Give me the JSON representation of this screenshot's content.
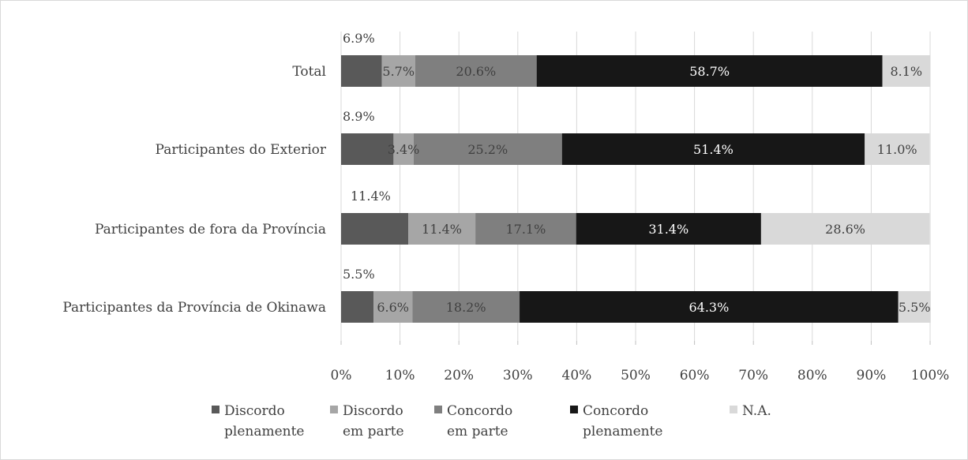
{
  "chart_data": {
    "type": "bar",
    "orientation": "horizontal",
    "stacked": true,
    "percent_stacked": true,
    "categories": [
      "Total",
      "Participantes do Exterior",
      "Participantes de fora da Província",
      "Participantes da Província de Okinawa"
    ],
    "series": [
      {
        "name": "Discordo plenamente",
        "legend_lines": [
          "Discordo",
          "plenamente"
        ],
        "color": "#595959",
        "values": [
          6.9,
          8.9,
          11.4,
          5.5
        ],
        "labels": [
          "6.9%",
          "8.9%",
          "11.4%",
          "5.5%"
        ]
      },
      {
        "name": "Discordo em parte",
        "legend_lines": [
          "Discordo",
          "em parte"
        ],
        "color": "#a6a6a6",
        "values": [
          5.7,
          3.4,
          11.4,
          6.6
        ],
        "labels": [
          "5.7%",
          "3.4%",
          "11.4%",
          "6.6%"
        ]
      },
      {
        "name": "Concordo em parte",
        "legend_lines": [
          "Concordo",
          "em parte"
        ],
        "color": "#7f7f7f",
        "values": [
          20.6,
          25.2,
          17.1,
          18.2
        ],
        "labels": [
          "20.6%",
          "25.2%",
          "17.1%",
          "18.2%"
        ]
      },
      {
        "name": "Concordo plenamente",
        "legend_lines": [
          "Concordo",
          "plenamente"
        ],
        "color": "#171717",
        "values": [
          58.7,
          51.4,
          31.4,
          64.3
        ],
        "labels": [
          "58.7%",
          "51.4%",
          "31.4%",
          "64.3%"
        ]
      },
      {
        "name": "N.A.",
        "legend_lines": [
          "N.A."
        ],
        "color": "#d9d9d9",
        "values": [
          8.1,
          11.0,
          28.6,
          5.5
        ],
        "labels": [
          "8.1%",
          "11.0%",
          "28.6%",
          "5.5%"
        ]
      }
    ],
    "xlim": [
      0,
      100
    ],
    "xticks": [
      "0%",
      "10%",
      "20%",
      "30%",
      "40%",
      "50%",
      "60%",
      "70%",
      "80%",
      "90%",
      "100%"
    ],
    "grid": true,
    "legend_position": "bottom"
  }
}
